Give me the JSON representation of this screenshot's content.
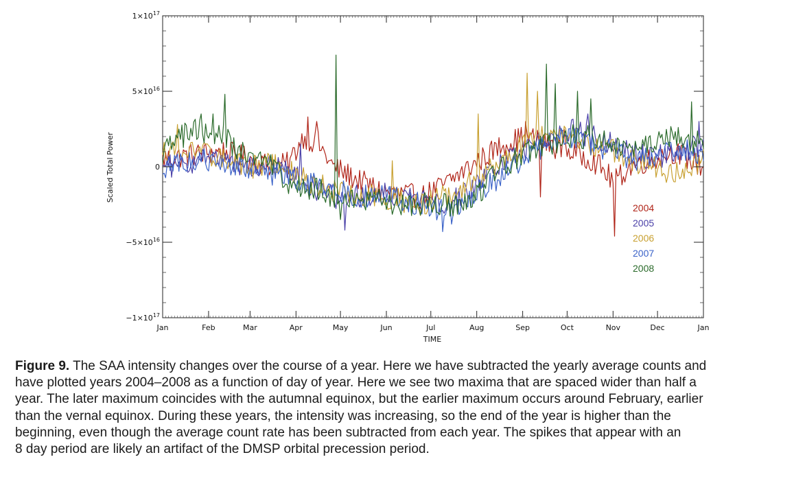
{
  "chart_data": {
    "type": "line",
    "xlabel": "TIME",
    "ylabel": "Scaled Total Power",
    "xlim": [
      0,
      365
    ],
    "ylim": [
      -1e+17,
      1e+17
    ],
    "x_ticks": [
      {
        "value": 0,
        "label": "Jan"
      },
      {
        "value": 31,
        "label": "Feb"
      },
      {
        "value": 59,
        "label": "Mar"
      },
      {
        "value": 90,
        "label": "Apr"
      },
      {
        "value": 120,
        "label": "May"
      },
      {
        "value": 151,
        "label": "Jun"
      },
      {
        "value": 181,
        "label": "Jul"
      },
      {
        "value": 212,
        "label": "Aug"
      },
      {
        "value": 243,
        "label": "Sep"
      },
      {
        "value": 273,
        "label": "Oct"
      },
      {
        "value": 304,
        "label": "Nov"
      },
      {
        "value": 334,
        "label": "Dec"
      },
      {
        "value": 365,
        "label": "Jan"
      }
    ],
    "y_ticks": [
      {
        "value": 1e+17,
        "mant": "1×10",
        "exp": "17"
      },
      {
        "value": 5e+16,
        "mant": "5×10",
        "exp": "16"
      },
      {
        "value": 0,
        "mant": "0",
        "exp": ""
      },
      {
        "value": -5e+16,
        "mant": "−5×10",
        "exp": "16"
      },
      {
        "value": -1e+17,
        "mant": "−1×10",
        "exp": "17"
      }
    ],
    "legend_position": "right",
    "series": [
      {
        "name": "2004",
        "color": "#b02418",
        "x": [
          0,
          20,
          40,
          60,
          75,
          85,
          95,
          105,
          115,
          130,
          145,
          160,
          175,
          190,
          200,
          215,
          230,
          245,
          260,
          275,
          290,
          305,
          315,
          330,
          345,
          365
        ],
        "y": [
          5000000000000000.0,
          8000000000000000.0,
          1e+16,
          5000000000000000.0,
          0,
          2000000000000000.0,
          2e+16,
          1.5e+16,
          0,
          -8000000000000000.0,
          -1.5e+16,
          -1.8e+16,
          -2e+16,
          -1.2e+16,
          -5000000000000000.0,
          5000000000000000.0,
          1.5e+16,
          2e+16,
          1.5e+16,
          1e+16,
          5000000000000000.0,
          -1e+16,
          0,
          5000000000000000.0,
          1e+16,
          0
        ],
        "spikes": [
          {
            "x": 98,
            "y": 3.3e+16
          },
          {
            "x": 104,
            "y": 3e+16
          },
          {
            "x": 245,
            "y": 3e+16
          },
          {
            "x": 255,
            "y": -2e+16
          },
          {
            "x": 271,
            "y": 2.5e+16
          },
          {
            "x": 305,
            "y": -4.6e+16
          }
        ]
      },
      {
        "name": "2005",
        "color": "#4a40a8",
        "x": [
          0,
          20,
          40,
          60,
          75,
          85,
          95,
          105,
          115,
          130,
          145,
          160,
          175,
          190,
          200,
          215,
          230,
          245,
          260,
          275,
          290,
          305,
          315,
          330,
          345,
          365
        ],
        "y": [
          0,
          3000000000000000.0,
          5000000000000000.0,
          0,
          0,
          -5000000000000000.0,
          -1e+16,
          -1.5e+16,
          -2e+16,
          -2e+16,
          -1.8e+16,
          -2e+16,
          -2.2e+16,
          -2.5e+16,
          -2e+16,
          -1e+16,
          5000000000000000.0,
          1e+16,
          2e+16,
          2.5e+16,
          2e+16,
          1.5e+16,
          1e+16,
          5000000000000000.0,
          1e+16,
          1.5e+16
        ],
        "spikes": [
          {
            "x": 93,
            "y": 1.5e+16
          },
          {
            "x": 123,
            "y": -4.2e+16
          },
          {
            "x": 287,
            "y": 3.5e+16
          },
          {
            "x": 362,
            "y": 3e+16
          }
        ]
      },
      {
        "name": "2006",
        "color": "#c8a030",
        "x": [
          0,
          20,
          40,
          60,
          75,
          85,
          95,
          105,
          115,
          130,
          145,
          160,
          175,
          190,
          200,
          215,
          230,
          245,
          260,
          275,
          290,
          305,
          315,
          330,
          345,
          365
        ],
        "y": [
          1e+16,
          1.2e+16,
          5000000000000000.0,
          0,
          2000000000000000.0,
          -3000000000000000.0,
          -8000000000000000.0,
          -1.2e+16,
          -1.5e+16,
          -1.8e+16,
          -2e+16,
          -2.2e+16,
          -2.5e+16,
          -2e+16,
          -1.5e+16,
          -5000000000000000.0,
          5000000000000000.0,
          1.5e+16,
          2.5e+16,
          2e+16,
          1.5e+16,
          1e+16,
          5000000000000000.0,
          0,
          -5000000000000000.0,
          5000000000000000.0
        ],
        "spikes": [
          {
            "x": 10,
            "y": 2.8e+16
          },
          {
            "x": 155,
            "y": 4000000000000000.0
          },
          {
            "x": 213,
            "y": 3.5e+16
          },
          {
            "x": 246,
            "y": 6.2e+16
          },
          {
            "x": 253,
            "y": 5e+16
          },
          {
            "x": 346,
            "y": -1e+16
          }
        ]
      },
      {
        "name": "2007",
        "color": "#3a62c8",
        "x": [
          0,
          20,
          40,
          60,
          75,
          85,
          95,
          105,
          115,
          130,
          145,
          160,
          175,
          190,
          200,
          215,
          230,
          245,
          260,
          275,
          290,
          305,
          315,
          330,
          345,
          365
        ],
        "y": [
          0,
          5000000000000000.0,
          3000000000000000.0,
          0,
          -5000000000000000.0,
          -8000000000000000.0,
          -1e+16,
          -1.2e+16,
          -1.5e+16,
          -2e+16,
          -1.8e+16,
          -2.2e+16,
          -2.5e+16,
          -3e+16,
          -2.5e+16,
          -1.5e+16,
          -5000000000000000.0,
          5000000000000000.0,
          1.5e+16,
          2e+16,
          1.5e+16,
          1e+16,
          5000000000000000.0,
          5000000000000000.0,
          1e+16,
          1e+16
        ],
        "spikes": [
          {
            "x": 189,
            "y": -4.3e+16
          },
          {
            "x": 195,
            "y": -3.8e+16
          }
        ]
      },
      {
        "name": "2008",
        "color": "#2a6a2a",
        "x": [
          0,
          20,
          40,
          60,
          75,
          85,
          95,
          105,
          115,
          130,
          145,
          160,
          175,
          190,
          200,
          215,
          230,
          245,
          260,
          275,
          290,
          305,
          315,
          330,
          345,
          365
        ],
        "y": [
          1e+16,
          2.5e+16,
          2e+16,
          5000000000000000.0,
          0,
          -1e+16,
          -1.5e+16,
          -1.5e+16,
          -2e+16,
          -2e+16,
          -2.2e+16,
          -2.5e+16,
          -2.5e+16,
          -2.5e+16,
          -2.5e+16,
          -1.5e+16,
          0,
          1e+16,
          1.5e+16,
          2e+16,
          2e+16,
          1.5e+16,
          1e+16,
          1.5e+16,
          2e+16,
          1.5e+16
        ],
        "spikes": [
          {
            "x": 26,
            "y": 3.5e+16
          },
          {
            "x": 34,
            "y": 3.5e+16
          },
          {
            "x": 42,
            "y": 4.8e+16
          },
          {
            "x": 117,
            "y": 7.4e+16
          },
          {
            "x": 120,
            "y": -3.5e+16
          },
          {
            "x": 259,
            "y": 6.8e+16
          },
          {
            "x": 265,
            "y": 5.5e+16
          },
          {
            "x": 280,
            "y": 5e+16
          },
          {
            "x": 289,
            "y": 4.5e+16
          },
          {
            "x": 357,
            "y": 4.3e+16
          }
        ]
      }
    ]
  },
  "caption": {
    "label": "Figure 9.",
    "lines": [
      " The SAA intensity changes over the course of a year. Here we have subtracted the yearly average counts and",
      "have plotted years 2004–2008 as a function of day of year. Here we see two maxima that are spaced wider than half a",
      "year. The later maximum coincides with the autumnal equinox, but the earlier maximum occurs around February, earlier",
      "than the vernal equinox. During these years, the intensity was increasing, so the end of the year is higher than the",
      "beginning, even though the average count rate has been subtracted from each year. The spikes that appear with an",
      "8 day period are likely an artifact of the DMSP orbital precession period."
    ]
  }
}
